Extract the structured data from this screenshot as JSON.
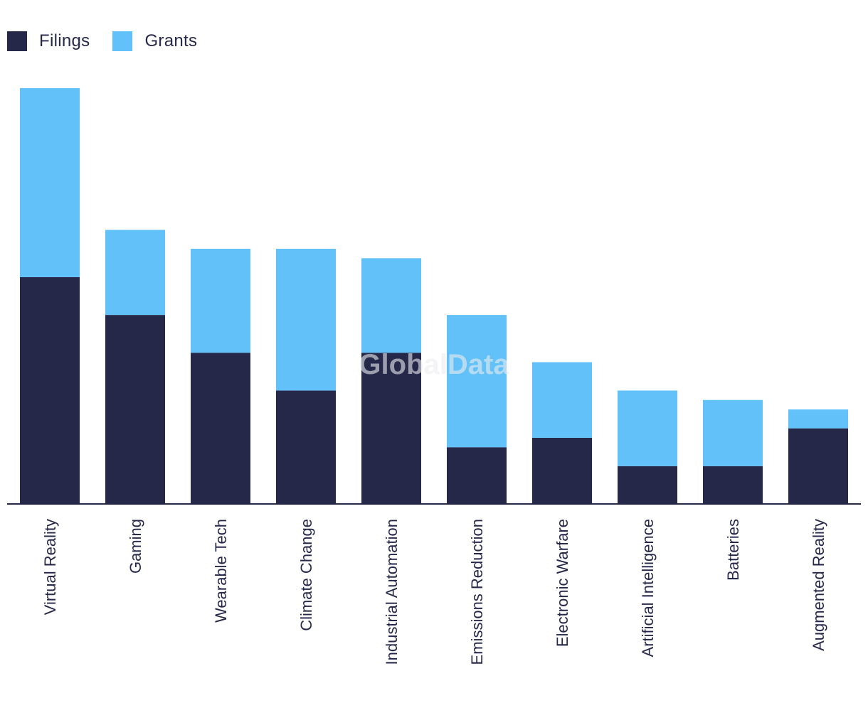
{
  "legend": [
    {
      "name": "Filings",
      "color": "#26284a"
    },
    {
      "name": "Grants",
      "color": "#61c1f8"
    }
  ],
  "watermark": "GlobalData",
  "chart_data": {
    "type": "bar",
    "stacked": true,
    "title": "",
    "xlabel": "",
    "ylabel": "",
    "categories": [
      "Virtual Reality",
      "Gaming",
      "Wearable Tech",
      "Climate Change",
      "Industrial Automation",
      "Emissions Reduction",
      "Electronic Warfare",
      "Artificial Intelligence",
      "Batteries",
      "Augmented Reality"
    ],
    "series": [
      {
        "name": "Filings",
        "color": "#26284a",
        "values": [
          24,
          20,
          16,
          12,
          16,
          6,
          7,
          4,
          4,
          8
        ]
      },
      {
        "name": "Grants",
        "color": "#61c1f8",
        "values": [
          20,
          9,
          11,
          15,
          10,
          14,
          8,
          8,
          7,
          2
        ]
      }
    ],
    "ylim": [
      0,
      44
    ],
    "grid": false,
    "legend_position": "top-left"
  }
}
